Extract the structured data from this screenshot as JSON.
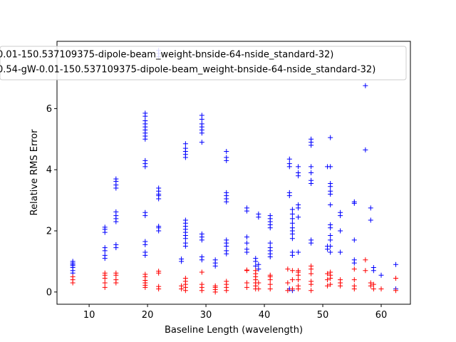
{
  "chart_data": {
    "type": "scatter",
    "title": "",
    "xlabel": "Baseline Length (wavelength)",
    "ylabel": "Relative RMS Error",
    "xlim": [
      4.5,
      65.0
    ],
    "ylim": [
      -0.4,
      8.2
    ],
    "xticks": [
      10,
      20,
      30,
      40,
      50,
      60
    ],
    "yticks": [
      0,
      2,
      4,
      6
    ],
    "grid": false,
    "legend_position": "top",
    "series": [
      {
        "name": "0.01-150.537109375-dipole-beam_weight-bnside-64-nside_standard-32)",
        "color": "#0000ff",
        "marker": "+",
        "points": [
          [
            7.2,
            0.62
          ],
          [
            7.2,
            0.7
          ],
          [
            7.2,
            0.8
          ],
          [
            7.2,
            0.86
          ],
          [
            7.2,
            0.9
          ],
          [
            7.2,
            0.95
          ],
          [
            7.2,
            1.0
          ],
          [
            12.7,
            1.1
          ],
          [
            12.7,
            1.2
          ],
          [
            12.7,
            1.35
          ],
          [
            12.7,
            1.45
          ],
          [
            12.7,
            1.95
          ],
          [
            12.7,
            2.05
          ],
          [
            12.7,
            2.12
          ],
          [
            14.6,
            1.45
          ],
          [
            14.6,
            1.55
          ],
          [
            14.6,
            2.3
          ],
          [
            14.6,
            2.4
          ],
          [
            14.6,
            2.5
          ],
          [
            14.6,
            2.62
          ],
          [
            14.6,
            3.4
          ],
          [
            14.6,
            3.5
          ],
          [
            14.6,
            3.62
          ],
          [
            14.6,
            3.7
          ],
          [
            19.6,
            1.2
          ],
          [
            19.6,
            1.3
          ],
          [
            19.6,
            1.55
          ],
          [
            19.6,
            1.65
          ],
          [
            19.6,
            2.5
          ],
          [
            19.6,
            2.6
          ],
          [
            19.6,
            4.1
          ],
          [
            19.6,
            4.2
          ],
          [
            19.6,
            4.3
          ],
          [
            19.6,
            5.0
          ],
          [
            19.6,
            5.1
          ],
          [
            19.6,
            5.2
          ],
          [
            19.6,
            5.3
          ],
          [
            19.6,
            5.4
          ],
          [
            19.6,
            5.5
          ],
          [
            19.6,
            5.6
          ],
          [
            19.6,
            5.75
          ],
          [
            19.6,
            5.85
          ],
          [
            21.9,
            2.0
          ],
          [
            21.9,
            2.1
          ],
          [
            21.9,
            2.15
          ],
          [
            21.9,
            3.05
          ],
          [
            21.9,
            3.15
          ],
          [
            21.9,
            3.2
          ],
          [
            21.9,
            3.3
          ],
          [
            21.9,
            3.4
          ],
          [
            21.9,
            7.7
          ],
          [
            21.9,
            7.8
          ],
          [
            21.9,
            7.9
          ],
          [
            25.8,
            1.0
          ],
          [
            25.8,
            1.08
          ],
          [
            26.5,
            1.5
          ],
          [
            26.5,
            1.6
          ],
          [
            26.5,
            1.75
          ],
          [
            26.5,
            1.85
          ],
          [
            26.5,
            1.95
          ],
          [
            26.5,
            2.05
          ],
          [
            26.5,
            2.15
          ],
          [
            26.5,
            2.25
          ],
          [
            26.5,
            2.35
          ],
          [
            26.5,
            4.4
          ],
          [
            26.5,
            4.5
          ],
          [
            26.5,
            4.6
          ],
          [
            26.5,
            4.7
          ],
          [
            26.5,
            4.85
          ],
          [
            29.3,
            1.05
          ],
          [
            29.3,
            1.15
          ],
          [
            29.3,
            1.7
          ],
          [
            29.3,
            1.8
          ],
          [
            29.3,
            1.9
          ],
          [
            29.3,
            4.9
          ],
          [
            29.3,
            5.2
          ],
          [
            29.3,
            5.3
          ],
          [
            29.3,
            5.4
          ],
          [
            29.3,
            5.5
          ],
          [
            29.3,
            5.65
          ],
          [
            29.3,
            5.78
          ],
          [
            31.6,
            0.85
          ],
          [
            31.6,
            0.95
          ],
          [
            31.6,
            1.05
          ],
          [
            33.5,
            1.25
          ],
          [
            33.5,
            1.35
          ],
          [
            33.5,
            1.5
          ],
          [
            33.5,
            1.6
          ],
          [
            33.5,
            1.7
          ],
          [
            33.5,
            2.95
          ],
          [
            33.5,
            3.05
          ],
          [
            33.5,
            3.15
          ],
          [
            33.5,
            3.25
          ],
          [
            33.5,
            4.3
          ],
          [
            33.5,
            4.4
          ],
          [
            33.5,
            4.6
          ],
          [
            37.0,
            1.3
          ],
          [
            37.0,
            1.4
          ],
          [
            37.0,
            1.6
          ],
          [
            37.0,
            1.8
          ],
          [
            37.0,
            2.65
          ],
          [
            37.0,
            2.75
          ],
          [
            38.5,
            0.85
          ],
          [
            38.5,
            1.0
          ],
          [
            38.5,
            1.1
          ],
          [
            39.0,
            0.75
          ],
          [
            39.0,
            0.9
          ],
          [
            39.0,
            2.45
          ],
          [
            39.0,
            2.55
          ],
          [
            41.0,
            1.15
          ],
          [
            41.0,
            1.25
          ],
          [
            41.0,
            1.35
          ],
          [
            41.0,
            1.45
          ],
          [
            41.0,
            1.6
          ],
          [
            41.0,
            2.1
          ],
          [
            41.0,
            2.2
          ],
          [
            41.0,
            2.3
          ],
          [
            41.0,
            2.4
          ],
          [
            41.0,
            2.5
          ],
          [
            44.3,
            0.1
          ],
          [
            44.3,
            3.15
          ],
          [
            44.3,
            3.25
          ],
          [
            44.3,
            4.1
          ],
          [
            44.3,
            4.2
          ],
          [
            44.3,
            4.35
          ],
          [
            44.8,
            0.05
          ],
          [
            44.8,
            1.2
          ],
          [
            44.8,
            1.3
          ],
          [
            44.8,
            1.75
          ],
          [
            44.8,
            1.9
          ],
          [
            44.8,
            2.0
          ],
          [
            44.8,
            2.1
          ],
          [
            44.8,
            2.25
          ],
          [
            44.8,
            2.4
          ],
          [
            44.8,
            2.55
          ],
          [
            44.8,
            2.7
          ],
          [
            45.8,
            1.3
          ],
          [
            45.8,
            2.45
          ],
          [
            45.8,
            2.75
          ],
          [
            45.8,
            2.85
          ],
          [
            45.8,
            3.8
          ],
          [
            45.8,
            3.9
          ],
          [
            45.8,
            4.1
          ],
          [
            48.0,
            1.6
          ],
          [
            48.0,
            1.7
          ],
          [
            48.0,
            3.55
          ],
          [
            48.0,
            3.65
          ],
          [
            48.0,
            3.9
          ],
          [
            48.0,
            4.1
          ],
          [
            48.0,
            4.8
          ],
          [
            48.0,
            4.9
          ],
          [
            48.0,
            5.0
          ],
          [
            50.8,
            1.4
          ],
          [
            50.8,
            1.5
          ],
          [
            50.8,
            4.1
          ],
          [
            51.3,
            1.3
          ],
          [
            51.3,
            1.5
          ],
          [
            51.3,
            1.7
          ],
          [
            51.3,
            1.85
          ],
          [
            51.3,
            2.1
          ],
          [
            51.3,
            2.2
          ],
          [
            51.3,
            2.85
          ],
          [
            51.3,
            3.2
          ],
          [
            51.3,
            3.3
          ],
          [
            51.3,
            3.45
          ],
          [
            51.3,
            3.55
          ],
          [
            51.3,
            4.1
          ],
          [
            51.3,
            5.05
          ],
          [
            53.0,
            1.3
          ],
          [
            53.0,
            2.0
          ],
          [
            53.0,
            2.5
          ],
          [
            53.0,
            2.6
          ],
          [
            55.4,
            0.95
          ],
          [
            55.4,
            1.05
          ],
          [
            55.4,
            1.7
          ],
          [
            55.4,
            2.9
          ],
          [
            55.4,
            2.95
          ],
          [
            57.3,
            4.65
          ],
          [
            57.3,
            6.75
          ],
          [
            58.2,
            2.35
          ],
          [
            58.2,
            2.75
          ],
          [
            58.7,
            0.7
          ],
          [
            58.7,
            0.8
          ],
          [
            60.0,
            0.55
          ],
          [
            62.5,
            0.1
          ],
          [
            62.5,
            0.9
          ]
        ]
      },
      {
        "name": "0.54-gW-0.01-150.537109375-dipole-beam_weight-bnside-64-nside_standard-32)",
        "color": "#ff0000",
        "marker": "+",
        "points": [
          [
            7.2,
            0.3
          ],
          [
            7.2,
            0.4
          ],
          [
            7.2,
            0.5
          ],
          [
            12.7,
            0.15
          ],
          [
            12.7,
            0.3
          ],
          [
            12.7,
            0.45
          ],
          [
            12.7,
            0.55
          ],
          [
            12.7,
            0.62
          ],
          [
            14.6,
            0.3
          ],
          [
            14.6,
            0.4
          ],
          [
            14.6,
            0.55
          ],
          [
            14.6,
            0.62
          ],
          [
            19.6,
            0.15
          ],
          [
            19.6,
            0.22
          ],
          [
            19.6,
            0.3
          ],
          [
            19.6,
            0.38
          ],
          [
            19.6,
            0.5
          ],
          [
            19.6,
            0.58
          ],
          [
            21.9,
            0.1
          ],
          [
            21.9,
            0.18
          ],
          [
            21.9,
            0.62
          ],
          [
            21.9,
            0.68
          ],
          [
            25.8,
            0.1
          ],
          [
            25.8,
            0.2
          ],
          [
            26.5,
            0.05
          ],
          [
            26.5,
            0.15
          ],
          [
            26.5,
            0.25
          ],
          [
            26.5,
            0.35
          ],
          [
            26.5,
            0.45
          ],
          [
            29.3,
            0.05
          ],
          [
            29.3,
            0.15
          ],
          [
            29.3,
            0.25
          ],
          [
            29.3,
            0.65
          ],
          [
            31.6,
            0.0
          ],
          [
            31.6,
            0.08
          ],
          [
            31.6,
            0.15
          ],
          [
            31.6,
            0.2
          ],
          [
            33.5,
            0.05
          ],
          [
            33.5,
            0.15
          ],
          [
            33.5,
            0.25
          ],
          [
            33.5,
            0.35
          ],
          [
            37.0,
            0.15
          ],
          [
            37.0,
            0.3
          ],
          [
            37.0,
            0.7
          ],
          [
            37.0,
            0.72
          ],
          [
            38.5,
            0.1
          ],
          [
            38.5,
            0.2
          ],
          [
            38.5,
            0.3
          ],
          [
            38.5,
            0.4
          ],
          [
            38.5,
            0.5
          ],
          [
            38.5,
            0.6
          ],
          [
            38.5,
            0.7
          ],
          [
            39.0,
            0.1
          ],
          [
            39.0,
            0.3
          ],
          [
            41.0,
            0.1
          ],
          [
            41.0,
            0.25
          ],
          [
            41.0,
            0.4
          ],
          [
            41.0,
            0.5
          ],
          [
            41.0,
            0.55
          ],
          [
            44.0,
            0.05
          ],
          [
            44.0,
            0.3
          ],
          [
            44.0,
            0.75
          ],
          [
            44.8,
            0.1
          ],
          [
            44.8,
            0.4
          ],
          [
            44.8,
            0.7
          ],
          [
            45.8,
            0.1
          ],
          [
            45.8,
            0.2
          ],
          [
            45.8,
            0.4
          ],
          [
            45.8,
            0.55
          ],
          [
            45.8,
            0.65
          ],
          [
            45.8,
            0.7
          ],
          [
            48.0,
            0.05
          ],
          [
            48.0,
            0.25
          ],
          [
            48.0,
            0.35
          ],
          [
            48.0,
            0.6
          ],
          [
            48.0,
            0.75
          ],
          [
            48.0,
            0.85
          ],
          [
            50.8,
            0.2
          ],
          [
            50.8,
            0.4
          ],
          [
            50.8,
            0.6
          ],
          [
            51.3,
            0.25
          ],
          [
            51.3,
            0.45
          ],
          [
            51.3,
            0.55
          ],
          [
            51.3,
            0.65
          ],
          [
            53.0,
            0.2
          ],
          [
            53.0,
            0.3
          ],
          [
            53.0,
            0.4
          ],
          [
            55.4,
            0.1
          ],
          [
            55.4,
            0.2
          ],
          [
            55.4,
            0.4
          ],
          [
            55.4,
            0.75
          ],
          [
            57.3,
            0.7
          ],
          [
            57.3,
            1.05
          ],
          [
            58.2,
            0.2
          ],
          [
            58.2,
            0.3
          ],
          [
            58.7,
            0.1
          ],
          [
            58.7,
            0.25
          ],
          [
            60.0,
            0.1
          ],
          [
            62.5,
            0.05
          ],
          [
            62.5,
            0.45
          ]
        ]
      }
    ]
  }
}
